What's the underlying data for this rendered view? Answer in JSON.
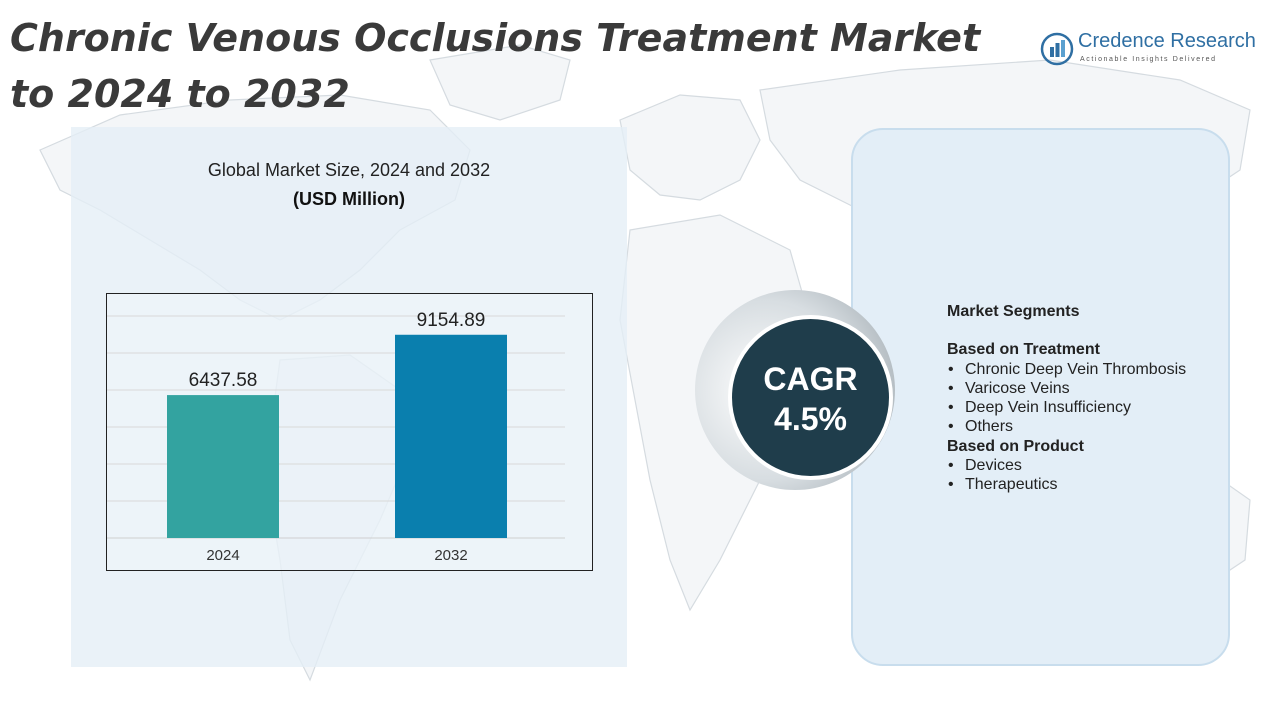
{
  "title": "Chronic Venous Occlusions Treatment Market to 2024 to 2032",
  "logo": {
    "name": "Credence Research",
    "tagline": "Actionable Insights Delivered"
  },
  "chart_data": {
    "type": "bar",
    "title": "Global Market Size, 2024 and 2032",
    "ylabel": "(USD Million)",
    "categories": [
      "2024",
      "2032"
    ],
    "values": [
      6437.58,
      9154.89
    ],
    "value_labels": [
      "6437.58",
      "9154.89"
    ],
    "colors": [
      "#33a3a0",
      "#0a7fae"
    ],
    "ylim": [
      0,
      10000
    ],
    "grid": true
  },
  "cagr": {
    "label": "CAGR",
    "value": "4.5%"
  },
  "segments": {
    "heading": "Market Segments",
    "groups": [
      {
        "title": "Based on Treatment",
        "items": [
          "Chronic Deep Vein Thrombosis",
          "Varicose Veins",
          "Deep Vein Insufficiency",
          "Others"
        ]
      },
      {
        "title": "Based on Product",
        "items": [
          "Devices",
          "Therapeutics"
        ]
      }
    ]
  }
}
